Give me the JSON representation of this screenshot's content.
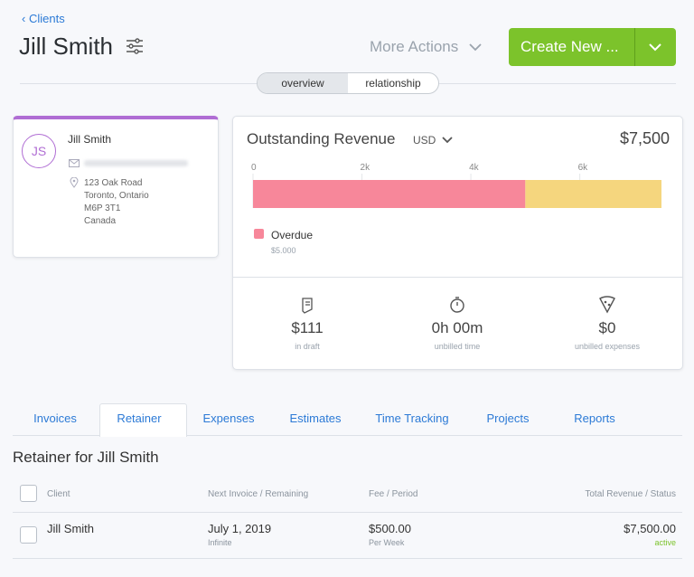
{
  "header": {
    "back_link": "Clients",
    "title": "Jill Smith",
    "more_actions": "More Actions",
    "create_button": "Create New ..."
  },
  "view_toggle": [
    "overview",
    "relationship"
  ],
  "client_card": {
    "initials": "JS",
    "name": "Jill Smith",
    "address": [
      "123 Oak Road",
      "Toronto, Ontario",
      "M6P 3T1",
      "Canada"
    ]
  },
  "revenue_card": {
    "title": "Outstanding Revenue",
    "currency": "USD",
    "total": "$7,500",
    "chart_data": {
      "type": "bar",
      "orientation": "horizontal",
      "stacked": true,
      "xlim": [
        0,
        7500
      ],
      "xticks": [
        0,
        {
          "value": 2000,
          "label": "2k"
        },
        {
          "value": 4000,
          "label": "4k"
        },
        {
          "value": 6000,
          "label": "6k"
        }
      ],
      "series": [
        {
          "name": "Overdue",
          "color": "#f7879a",
          "values": [
            5000
          ],
          "value_labels": [
            "$5,000"
          ]
        },
        {
          "color": "#f5d67e",
          "values": [
            2500
          ]
        }
      ]
    },
    "stats": [
      {
        "value": "$111",
        "label": "in draft"
      },
      {
        "value": "0h 00m",
        "label": "unbilled time"
      },
      {
        "value": "$0",
        "label": "unbilled expenses"
      }
    ]
  },
  "tabs": [
    "Invoices",
    "Retainer",
    "Expenses",
    "Estimates",
    "Time Tracking",
    "Projects",
    "Reports"
  ],
  "retainer": {
    "title": "Retainer for Jill Smith",
    "columns": [
      "Client",
      "Next Invoice / Remaining",
      "Fee / Period",
      "Total Revenue / Status"
    ],
    "rows": [
      [
        [
          "Jill Smith"
        ],
        [
          "July 1, 2019",
          "Infinite"
        ],
        [
          "$500.00",
          "Per Week"
        ],
        [
          "$7,500.00",
          "active"
        ]
      ]
    ]
  }
}
